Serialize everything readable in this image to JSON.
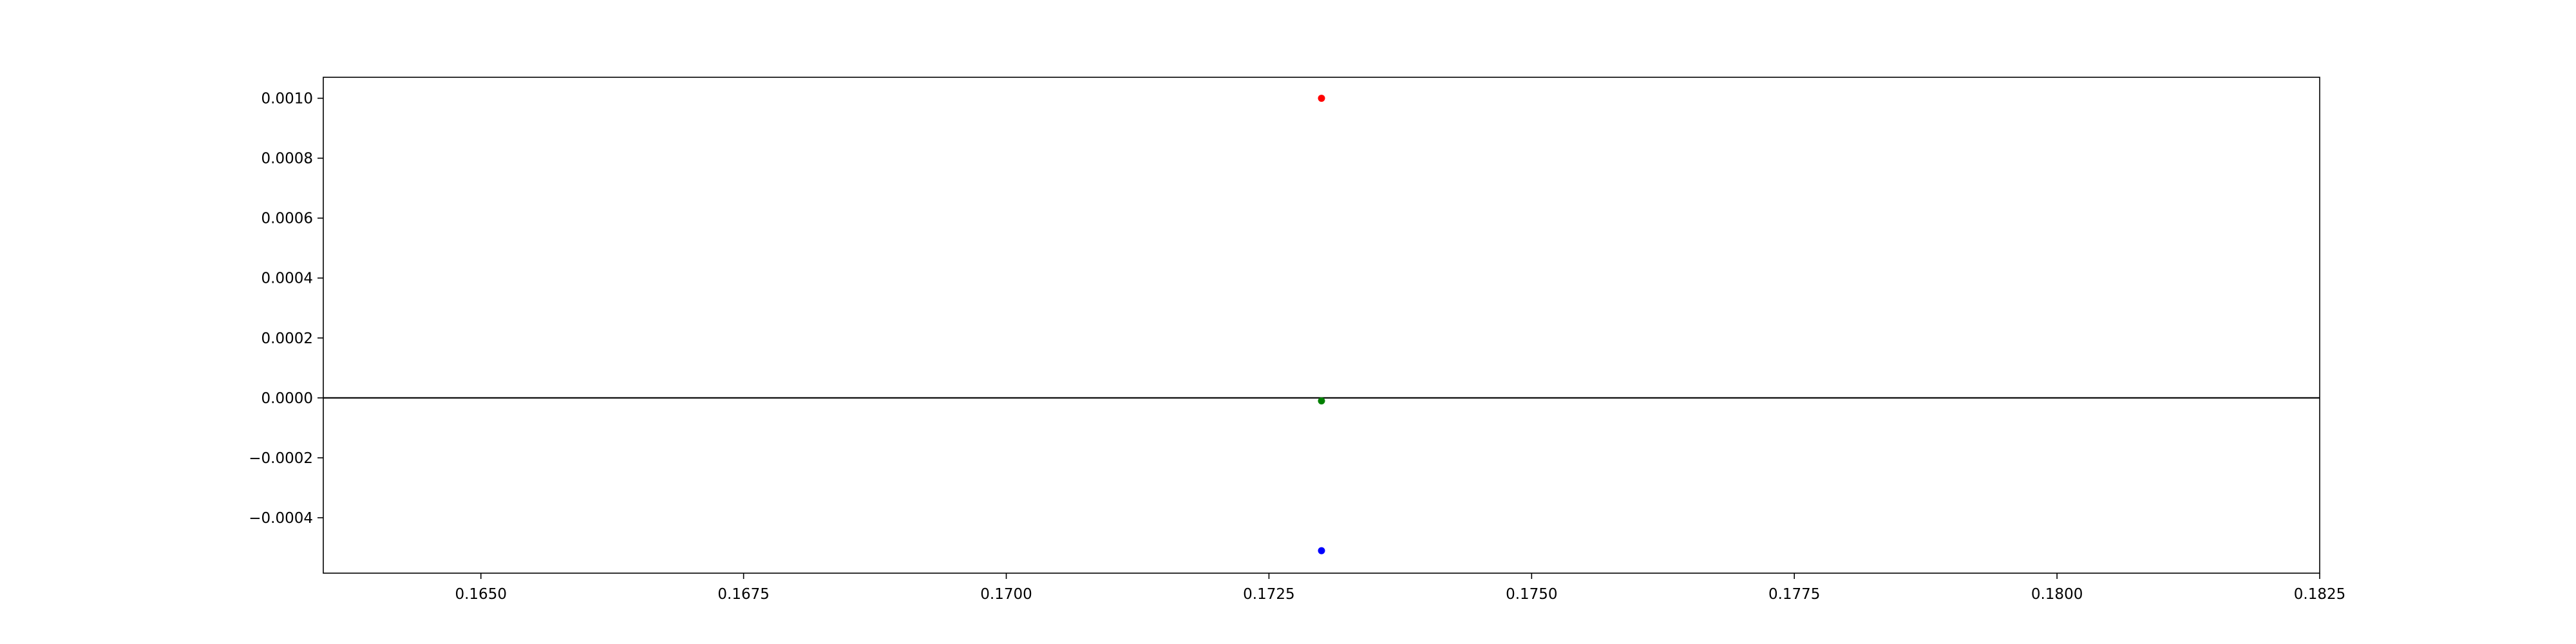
{
  "chart_data": {
    "type": "scatter",
    "title": "",
    "xlabel": "",
    "ylabel": "",
    "xlim": [
      0.1635,
      0.1825
    ],
    "ylim": [
      -0.000585,
      0.00107
    ],
    "grid": false,
    "legend": "none",
    "x_ticks": [
      {
        "value": 0.165,
        "label": "0.1650"
      },
      {
        "value": 0.1675,
        "label": "0.1675"
      },
      {
        "value": 0.17,
        "label": "0.1700"
      },
      {
        "value": 0.1725,
        "label": "0.1725"
      },
      {
        "value": 0.175,
        "label": "0.1750"
      },
      {
        "value": 0.1775,
        "label": "0.1775"
      },
      {
        "value": 0.18,
        "label": "0.1800"
      },
      {
        "value": 0.1825,
        "label": "0.1825"
      }
    ],
    "y_ticks": [
      {
        "value": 0.001,
        "label": "0.0010"
      },
      {
        "value": 0.0008,
        "label": "0.0008"
      },
      {
        "value": 0.0006,
        "label": "0.0006"
      },
      {
        "value": 0.0004,
        "label": "0.0004"
      },
      {
        "value": 0.0002,
        "label": "0.0002"
      },
      {
        "value": 0.0,
        "label": "0.0000"
      },
      {
        "value": -0.0002,
        "label": "−0.0002"
      },
      {
        "value": -0.0004,
        "label": "−0.0004"
      }
    ],
    "reference_lines": [
      {
        "axis": "y",
        "value": 0.0,
        "color": "#000000"
      }
    ],
    "points": [
      {
        "x": 0.173,
        "y": 0.001,
        "color": "#ff0000"
      },
      {
        "x": 0.173,
        "y": -1e-05,
        "color": "#008000"
      },
      {
        "x": 0.173,
        "y": -0.00051,
        "color": "#0000ff"
      }
    ]
  }
}
